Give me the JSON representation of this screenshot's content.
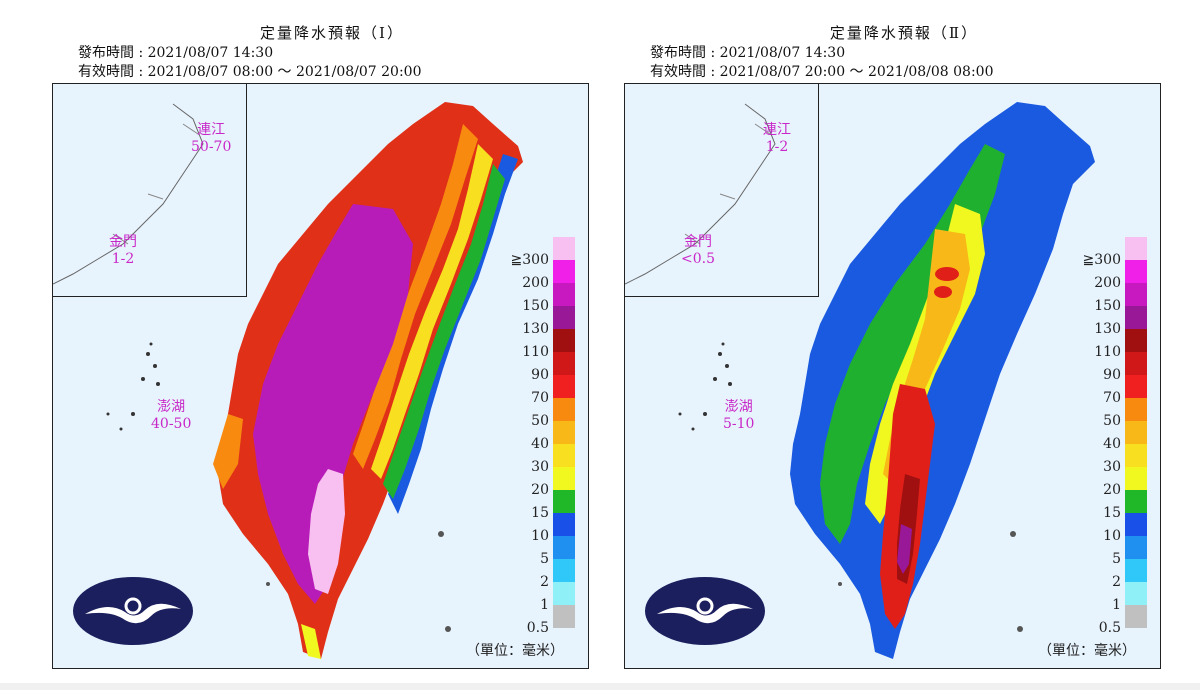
{
  "maps": [
    {
      "title": "定量降水預報（Ⅰ）",
      "issued": "發布時間 : 2021/08/07 14:30",
      "valid": "有效時間 : 2021/08/07 08:00 ～ 2021/08/07 20:00",
      "labels": {
        "matsu_name": "連江",
        "matsu_value": "50-70",
        "kinmen_name": "金門",
        "kinmen_value": "1-2",
        "penghu_name": "澎湖",
        "penghu_value": "40-50"
      },
      "unit": "（單位：毫米）"
    },
    {
      "title": "定量降水預報（Ⅱ）",
      "issued": "發布時間 : 2021/08/07 14:30",
      "valid": "有效時間 : 2021/08/07 20:00 ～ 2021/08/08 08:00",
      "labels": {
        "matsu_name": "連江",
        "matsu_value": "1-2",
        "kinmen_name": "金門",
        "kinmen_value": "<0.5",
        "penghu_name": "澎湖",
        "penghu_value": "5-10"
      },
      "unit": "（單位：毫米）"
    }
  ],
  "legend": [
    {
      "label": "≧300",
      "color": "#f8c0f0"
    },
    {
      "label": "200",
      "color": "#f020e8"
    },
    {
      "label": "150",
      "color": "#c818c0"
    },
    {
      "label": "130",
      "color": "#981898"
    },
    {
      "label": "110",
      "color": "#a01010"
    },
    {
      "label": "90",
      "color": "#d01818"
    },
    {
      "label": "70",
      "color": "#f02020"
    },
    {
      "label": "50",
      "color": "#f88a10"
    },
    {
      "label": "40",
      "color": "#f8b818"
    },
    {
      "label": "30",
      "color": "#f8e020"
    },
    {
      "label": "20",
      "color": "#f0f820"
    },
    {
      "label": "15",
      "color": "#20b828"
    },
    {
      "label": "10",
      "color": "#1850e8"
    },
    {
      "label": "5",
      "color": "#2090f0"
    },
    {
      "label": "2",
      "color": "#30c8f8"
    },
    {
      "label": "1",
      "color": "#90f0f8"
    },
    {
      "label": "0.5",
      "color": "#c0c0c0"
    }
  ]
}
